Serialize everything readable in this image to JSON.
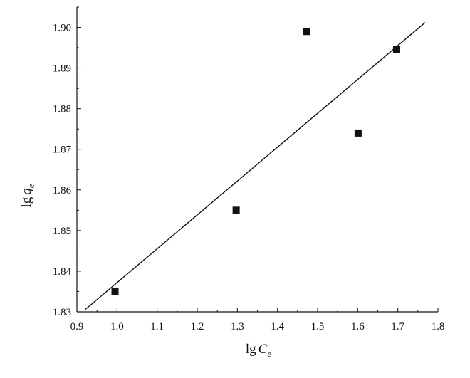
{
  "chart_data": {
    "type": "scatter",
    "xlabel": {
      "main": "lg",
      "var": "C",
      "sub": "e"
    },
    "ylabel": {
      "main": "lg",
      "var": "q",
      "sub": "e"
    },
    "xlim": [
      0.9,
      1.8
    ],
    "ylim": [
      1.83,
      1.905
    ],
    "x_ticks": [
      "0.9",
      "1.0",
      "1.1",
      "1.2",
      "1.3",
      "1.4",
      "1.5",
      "1.6",
      "1.7",
      "1.8"
    ],
    "y_ticks": [
      "1.83",
      "1.84",
      "1.85",
      "1.86",
      "1.87",
      "1.88",
      "1.89",
      "1.90"
    ],
    "series": [
      {
        "marker": "square",
        "color": "#111111",
        "points": [
          {
            "x": 0.995,
            "y": 1.835
          },
          {
            "x": 1.297,
            "y": 1.855
          },
          {
            "x": 1.473,
            "y": 1.899
          },
          {
            "x": 1.601,
            "y": 1.874
          },
          {
            "x": 1.697,
            "y": 1.8945
          }
        ]
      }
    ],
    "fit_line": {
      "x1": 0.92,
      "y1": 1.8305,
      "x2": 1.768,
      "y2": 1.9012,
      "color": "#111111"
    },
    "grid": false,
    "legend": "none"
  }
}
